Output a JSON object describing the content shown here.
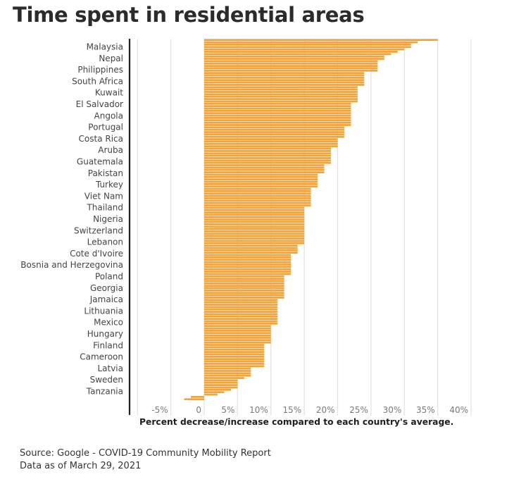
{
  "chart_data": {
    "type": "bar",
    "orientation": "horizontal",
    "title": "Time spent in residential areas",
    "xlabel": "Percent decrease/increase compared to each country's average.",
    "ylabel": "",
    "xlim": [
      -10,
      40
    ],
    "grid": true,
    "xticks": [
      -5,
      0,
      5,
      10,
      15,
      20,
      25,
      30,
      35,
      40
    ],
    "xtick_labels": [
      "-5%",
      "0",
      "5%",
      "10%",
      "15%",
      "20%",
      "25%",
      "30%",
      "35%",
      "40%"
    ],
    "labeled_categories": [
      "Malaysia",
      "Nepal",
      "Philippines",
      "South Africa",
      "Kuwait",
      "El Salvador",
      "Angola",
      "Portugal",
      "Costa Rica",
      "Aruba",
      "Guatemala",
      "Pakistan",
      "Turkey",
      "Viet Nam",
      "Thailand",
      "Nigeria",
      "Switzerland",
      "Lebanon",
      "Cote d'Ivoire",
      "Bosnia and Herzegovina",
      "Poland",
      "Georgia",
      "Jamaica",
      "Lithuania",
      "Mexico",
      "Hungary",
      "Finland",
      "Cameroon",
      "Latvia",
      "Sweden",
      "Tanzania"
    ],
    "value_groups": [
      {
        "value": 35,
        "count": 1
      },
      {
        "value": 32,
        "count": 1
      },
      {
        "value": 31,
        "count": 2
      },
      {
        "value": 30,
        "count": 1
      },
      {
        "value": 29,
        "count": 1
      },
      {
        "value": 28,
        "count": 1
      },
      {
        "value": 27,
        "count": 2
      },
      {
        "value": 26,
        "count": 5
      },
      {
        "value": 24,
        "count": 6
      },
      {
        "value": 23,
        "count": 7
      },
      {
        "value": 22,
        "count": 10
      },
      {
        "value": 21,
        "count": 5
      },
      {
        "value": 20,
        "count": 4
      },
      {
        "value": 19,
        "count": 7
      },
      {
        "value": 18,
        "count": 4
      },
      {
        "value": 17,
        "count": 6
      },
      {
        "value": 16,
        "count": 8
      },
      {
        "value": 15,
        "count": 16
      },
      {
        "value": 14,
        "count": 4
      },
      {
        "value": 13,
        "count": 9
      },
      {
        "value": 12,
        "count": 10
      },
      {
        "value": 11,
        "count": 11
      },
      {
        "value": 10,
        "count": 8
      },
      {
        "value": 9,
        "count": 10
      },
      {
        "value": 7,
        "count": 4
      },
      {
        "value": 6,
        "count": 1
      },
      {
        "value": 5,
        "count": 4
      },
      {
        "value": 4,
        "count": 1
      },
      {
        "value": 3,
        "count": 1
      },
      {
        "value": 2,
        "count": 1
      },
      {
        "value": -2,
        "count": 1
      },
      {
        "value": -3,
        "count": 1
      }
    ],
    "bar_color": "#F0A43C",
    "bar_separator_color": "#F7C98A",
    "grid_color": "#e2e2e2",
    "axis_color": "#222222"
  },
  "source": {
    "line1": "Source: Google - COVID-19 Community Mobility Report",
    "line2": "Data as of March 29, 2021"
  }
}
